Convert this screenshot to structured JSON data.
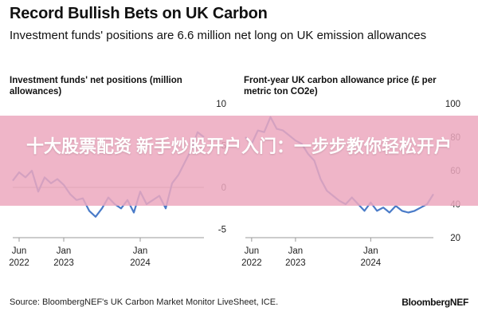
{
  "header": {
    "title": "Record Bullish Bets on UK Carbon",
    "subtitle": "Investment funds' positions are 6.6 million net long on UK emission allowances"
  },
  "banner": {
    "text": "十大股票配资 新手炒股开户入门：一步步教你轻松开户"
  },
  "footer": {
    "source": "Source: BloombergNEF's UK Carbon Market Monitor LiveSheet, ICE.",
    "logo": "BloombergNEF"
  },
  "colors": {
    "line": "#4a7bc8",
    "axis": "#999999",
    "banner": "#eca8be"
  },
  "chart_data": [
    {
      "type": "line",
      "title": "Investment funds' net positions (million allowances)",
      "x_start": "2022-05",
      "x_end": "2024-11",
      "x_ticks": [
        {
          "date": "2022-06",
          "line1": "Jun",
          "line2": "2022"
        },
        {
          "date": "2023-01",
          "line1": "Jan",
          "line2": "2023"
        },
        {
          "date": "2024-01",
          "line1": "Jan",
          "line2": "2024"
        }
      ],
      "ylim": [
        -6,
        10
      ],
      "y_ticks": [
        10,
        5,
        0,
        -5
      ],
      "baseline": 0,
      "series": [
        {
          "x": [
            "2022-05",
            "2022-06",
            "2022-07",
            "2022-08",
            "2022-09",
            "2022-10",
            "2022-11",
            "2022-12",
            "2023-01",
            "2023-02",
            "2023-03",
            "2023-04",
            "2023-05",
            "2023-06",
            "2023-07",
            "2023-08",
            "2023-09",
            "2023-10",
            "2023-11",
            "2023-12",
            "2024-01",
            "2024-02",
            "2024-03",
            "2024-04",
            "2024-05",
            "2024-06",
            "2024-07",
            "2024-08",
            "2024-09",
            "2024-10",
            "2024-11"
          ],
          "values": [
            0.8,
            1.8,
            1.2,
            2.0,
            -0.5,
            1.2,
            0.5,
            1.0,
            0.3,
            -0.8,
            -1.5,
            -1.3,
            -2.8,
            -3.5,
            -2.5,
            -1.2,
            -2.0,
            -2.5,
            -1.5,
            -3.0,
            -0.5,
            -2.0,
            -1.5,
            -1.0,
            -2.5,
            0.5,
            1.5,
            3.0,
            4.5,
            6.6,
            6.0
          ]
        }
      ]
    },
    {
      "type": "line",
      "title": "Front-year UK carbon allowance price (£ per metric ton CO2e)",
      "x_start": "2022-05",
      "x_end": "2024-11",
      "x_ticks": [
        {
          "date": "2022-06",
          "line1": "Jun",
          "line2": "2022"
        },
        {
          "date": "2023-01",
          "line1": "Jan",
          "line2": "2023"
        },
        {
          "date": "2024-01",
          "line1": "Jan",
          "line2": "2024"
        }
      ],
      "ylim": [
        20,
        100
      ],
      "y_ticks": [
        100,
        80,
        60,
        40,
        20
      ],
      "series": [
        {
          "x": [
            "2022-05",
            "2022-06",
            "2022-07",
            "2022-08",
            "2022-09",
            "2022-10",
            "2022-11",
            "2022-12",
            "2023-01",
            "2023-02",
            "2023-03",
            "2023-04",
            "2023-05",
            "2023-06",
            "2023-07",
            "2023-08",
            "2023-09",
            "2023-10",
            "2023-11",
            "2023-12",
            "2024-01",
            "2024-02",
            "2024-03",
            "2024-04",
            "2024-05",
            "2024-06",
            "2024-07",
            "2024-08",
            "2024-09",
            "2024-10",
            "2024-11"
          ],
          "values": [
            80,
            76,
            84,
            83,
            92,
            85,
            84,
            81,
            78,
            76,
            70,
            66,
            55,
            48,
            45,
            42,
            40,
            44,
            40,
            36,
            41,
            36,
            38,
            35,
            39,
            36,
            35,
            36,
            38,
            40,
            46
          ]
        }
      ]
    }
  ]
}
